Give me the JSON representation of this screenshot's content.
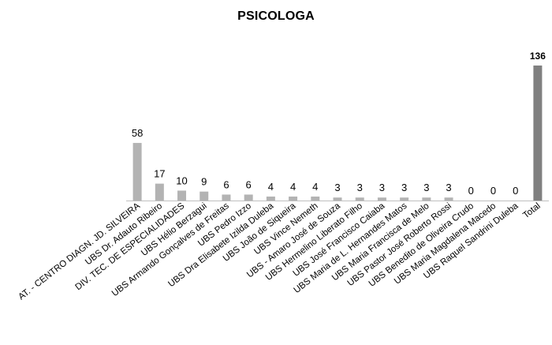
{
  "chart_data": {
    "type": "bar",
    "title": "PSICOLOGA",
    "categories": [
      "AT. - CENTRO DIAGN. JD. SILVEIRA",
      "UBS Dr. Adauto Ribeiro",
      "DIV. TEC. DE ESPECIALIDADES",
      "UBS Hélio Berzagui",
      "UBS Armando Gonçalves de Freitas",
      "UBS Pedro Izzo",
      "UBS Dra Elisabete Izilda Duleba",
      "UBS João de Siqueira",
      "UBS Vince Nemeth",
      "UBS - Amaro José de Souza",
      "UBS Hermelino Liberato Filho",
      "UBS José Francisco Caiaba",
      "UBS Maria de L. Hernandes Matos",
      "UBS Maria Francisca de Melo",
      "UBS Pastor José Roberto Rossi",
      "UBS Benedito de Oliveira Crudo",
      "UBS Maria Magdalena Macedo",
      "UBS Raquel Sandrini Duleba",
      "Total"
    ],
    "values": [
      58,
      17,
      10,
      9,
      6,
      6,
      4,
      4,
      4,
      3,
      3,
      3,
      3,
      3,
      3,
      0,
      0,
      0,
      136
    ],
    "data_labels": [
      "58",
      "17",
      "10",
      "9",
      "6",
      "6",
      "4",
      "4",
      "4",
      "3",
      "3",
      "3",
      "3",
      "3",
      "3",
      "0",
      "0",
      "0",
      "136"
    ],
    "xlabel": "",
    "ylabel": "",
    "ylim": [
      0,
      136
    ],
    "grid": false,
    "legend": "none",
    "colors": {
      "bar": "#b3b3b3",
      "total_bar": "#808080",
      "axis": "#bfbfbf"
    }
  }
}
